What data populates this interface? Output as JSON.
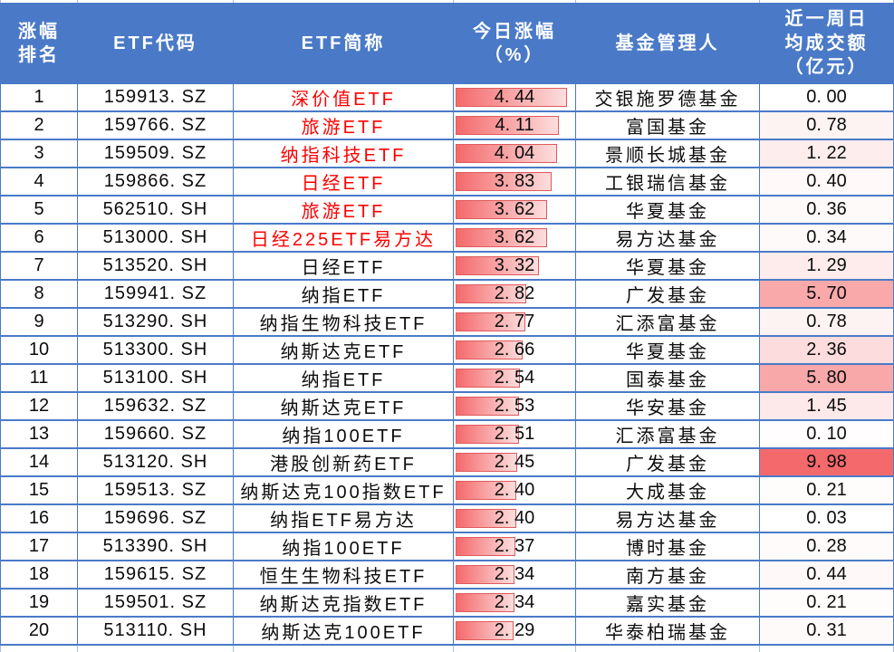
{
  "colors": {
    "header_bg": "#4a7ac7",
    "header_text": "#ffffff",
    "grid": "#4a7ac7",
    "name_highlight": "#ff0000",
    "body_text": "#0c0c0c",
    "bar_fill_start": "#f4696b",
    "bar_fill_end": "#fcdede",
    "bar_border": "#e05a5c",
    "turnover_scale_low": "#ffffff",
    "turnover_scale_high": "#f4696b"
  },
  "chart_data": {
    "type": "table",
    "columns": [
      "涨幅\n排名",
      "ETF代码",
      "ETF简称",
      "今日涨幅\n（%）",
      "基金管理人",
      "近一周日\n均成交额\n（亿元）"
    ],
    "conditional_formatting": {
      "gain_data_bar": {
        "column": "今日涨幅（%）",
        "min": 0,
        "max": 4.44,
        "max_fill_pct": 92
      },
      "turnover_color_scale": {
        "column": "近一周日均成交额（亿元）",
        "min": 0,
        "max": 9.98
      }
    },
    "rows": [
      {
        "rank": 1,
        "code": "159913.SZ",
        "name": "深价值ETF",
        "name_color": "red",
        "gain_pct": "4.44",
        "manager": "交银施罗德基金",
        "avg_turnover_100m": "0.00"
      },
      {
        "rank": 2,
        "code": "159766.SZ",
        "name": "旅游ETF",
        "name_color": "red",
        "gain_pct": "4.11",
        "manager": "富国基金",
        "avg_turnover_100m": "0.78"
      },
      {
        "rank": 3,
        "code": "159509.SZ",
        "name": "纳指科技ETF",
        "name_color": "red",
        "gain_pct": "4.04",
        "manager": "景顺长城基金",
        "avg_turnover_100m": "1.22"
      },
      {
        "rank": 4,
        "code": "159866.SZ",
        "name": "日经ETF",
        "name_color": "red",
        "gain_pct": "3.83",
        "manager": "工银瑞信基金",
        "avg_turnover_100m": "0.40"
      },
      {
        "rank": 5,
        "code": "562510.SH",
        "name": "旅游ETF",
        "name_color": "red",
        "gain_pct": "3.62",
        "manager": "华夏基金",
        "avg_turnover_100m": "0.36"
      },
      {
        "rank": 6,
        "code": "513000.SH",
        "name": "日经225ETF易方达",
        "name_color": "red",
        "gain_pct": "3.62",
        "manager": "易方达基金",
        "avg_turnover_100m": "0.34"
      },
      {
        "rank": 7,
        "code": "513520.SH",
        "name": "日经ETF",
        "name_color": "black",
        "gain_pct": "3.32",
        "manager": "华夏基金",
        "avg_turnover_100m": "1.29"
      },
      {
        "rank": 8,
        "code": "159941.SZ",
        "name": "纳指ETF",
        "name_color": "black",
        "gain_pct": "2.82",
        "manager": "广发基金",
        "avg_turnover_100m": "5.70"
      },
      {
        "rank": 9,
        "code": "513290.SH",
        "name": "纳指生物科技ETF",
        "name_color": "black",
        "gain_pct": "2.77",
        "manager": "汇添富基金",
        "avg_turnover_100m": "0.78"
      },
      {
        "rank": 10,
        "code": "513300.SH",
        "name": "纳斯达克ETF",
        "name_color": "black",
        "gain_pct": "2.66",
        "manager": "华夏基金",
        "avg_turnover_100m": "2.36"
      },
      {
        "rank": 11,
        "code": "513100.SH",
        "name": "纳指ETF",
        "name_color": "black",
        "gain_pct": "2.54",
        "manager": "国泰基金",
        "avg_turnover_100m": "5.80"
      },
      {
        "rank": 12,
        "code": "159632.SZ",
        "name": "纳斯达克ETF",
        "name_color": "black",
        "gain_pct": "2.53",
        "manager": "华安基金",
        "avg_turnover_100m": "1.45"
      },
      {
        "rank": 13,
        "code": "159660.SZ",
        "name": "纳指100ETF",
        "name_color": "black",
        "gain_pct": "2.51",
        "manager": "汇添富基金",
        "avg_turnover_100m": "0.10"
      },
      {
        "rank": 14,
        "code": "513120.SH",
        "name": "港股创新药ETF",
        "name_color": "black",
        "gain_pct": "2.45",
        "manager": "广发基金",
        "avg_turnover_100m": "9.98"
      },
      {
        "rank": 15,
        "code": "159513.SZ",
        "name": "纳斯达克100指数ETF",
        "name_color": "black",
        "gain_pct": "2.40",
        "manager": "大成基金",
        "avg_turnover_100m": "0.21"
      },
      {
        "rank": 16,
        "code": "159696.SZ",
        "name": "纳指ETF易方达",
        "name_color": "black",
        "gain_pct": "2.40",
        "manager": "易方达基金",
        "avg_turnover_100m": "0.03"
      },
      {
        "rank": 17,
        "code": "513390.SH",
        "name": "纳指100ETF",
        "name_color": "black",
        "gain_pct": "2.37",
        "manager": "博时基金",
        "avg_turnover_100m": "0.28"
      },
      {
        "rank": 18,
        "code": "159615.SZ",
        "name": "恒生生物科技ETF",
        "name_color": "black",
        "gain_pct": "2.34",
        "manager": "南方基金",
        "avg_turnover_100m": "0.44"
      },
      {
        "rank": 19,
        "code": "159501.SZ",
        "name": "纳斯达克指数ETF",
        "name_color": "black",
        "gain_pct": "2.34",
        "manager": "嘉实基金",
        "avg_turnover_100m": "0.21"
      },
      {
        "rank": 20,
        "code": "513110.SH",
        "name": "纳斯达克100ETF",
        "name_color": "black",
        "gain_pct": "2.29",
        "manager": "华泰柏瑞基金",
        "avg_turnover_100m": "0.31"
      }
    ]
  }
}
